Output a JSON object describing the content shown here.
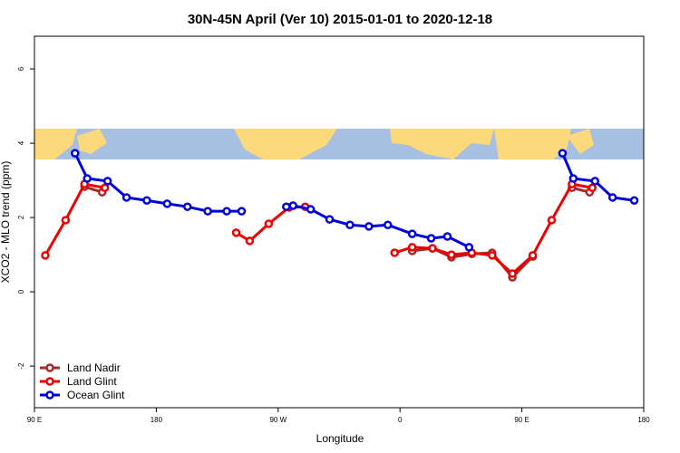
{
  "chart_data": {
    "type": "line",
    "title": "30N-45N April (Ver 10)   2015-01-01 to 2020-12-18",
    "x_label": "Longitude",
    "y_label": "XCO2 - MLO trend (ppm)",
    "xlim": [
      90,
      540
    ],
    "ylim": [
      -3.12,
      6.88
    ],
    "xticks": [
      {
        "value": 90,
        "label": "90 E"
      },
      {
        "value": 180,
        "label": "180"
      },
      {
        "value": 270,
        "label": "90 W"
      },
      {
        "value": 360,
        "label": "0"
      },
      {
        "value": 450,
        "label": "90 E"
      },
      {
        "value": 540,
        "label": "180"
      }
    ],
    "yticks": [
      -2,
      0,
      2,
      4,
      6
    ],
    "legend": "bottom-left",
    "series": [
      {
        "name": "Land Nadir",
        "color": "#a52a2a",
        "x": [
          127,
          140,
          null,
          369,
          384,
          398,
          413,
          428,
          443,
          458,
          null,
          487,
          500
        ],
        "values": [
          2.83,
          2.68,
          null,
          1.1,
          1.17,
          0.93,
          1.02,
          1.05,
          0.39,
          0.95,
          null,
          2.8,
          2.68
        ]
      },
      {
        "name": "Land Glint",
        "color": "#ee0000",
        "x": [
          98,
          113,
          127,
          142,
          null,
          239,
          249,
          263,
          278,
          290,
          null,
          356,
          369,
          384,
          398,
          413,
          428,
          443,
          458,
          472,
          487,
          502
        ],
        "values": [
          0.98,
          1.93,
          2.9,
          2.8,
          null,
          1.59,
          1.37,
          1.83,
          2.27,
          2.29,
          null,
          1.05,
          1.2,
          1.17,
          1.0,
          1.05,
          0.98,
          0.49,
          0.98,
          1.93,
          2.9,
          2.8
        ]
      },
      {
        "name": "Ocean Glint",
        "color": "#0000dd",
        "x": [
          120,
          129,
          144,
          158,
          173,
          188,
          203,
          218,
          232,
          243,
          null,
          276,
          281,
          294,
          308,
          323,
          337,
          351,
          369,
          383,
          395,
          411,
          null,
          480,
          488,
          504,
          517,
          533
        ],
        "values": [
          3.73,
          3.05,
          2.98,
          2.54,
          2.46,
          2.37,
          2.29,
          2.17,
          2.17,
          2.17,
          null,
          2.29,
          2.32,
          2.22,
          1.95,
          1.8,
          1.76,
          1.8,
          1.56,
          1.44,
          1.49,
          1.2,
          null,
          3.73,
          3.05,
          2.98,
          2.54,
          2.46
        ]
      }
    ]
  }
}
